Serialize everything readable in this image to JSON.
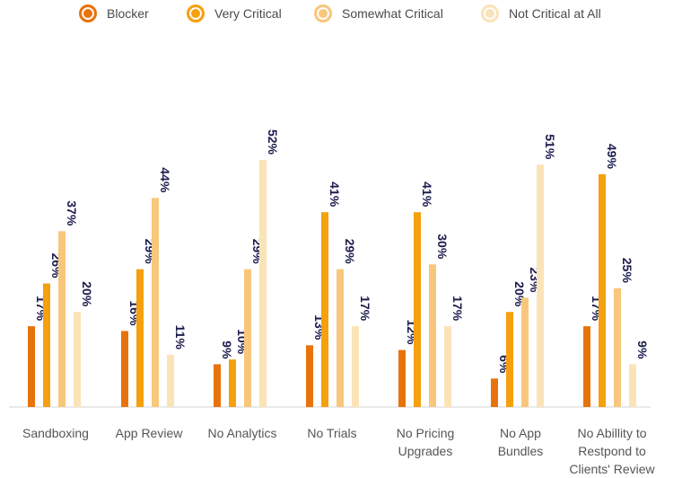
{
  "chart_data": {
    "type": "bar",
    "title": "",
    "xlabel": "",
    "ylabel": "",
    "ylim": [
      0,
      52
    ],
    "legend_position": "top",
    "categories": [
      [
        "Sandboxing"
      ],
      [
        "App Review"
      ],
      [
        "No Analytics"
      ],
      [
        "No Trials"
      ],
      [
        "No Pricing",
        "Upgrades"
      ],
      [
        "No App",
        "Bundles"
      ],
      [
        "No Abillity to",
        "Restpond to",
        "Clients' Review"
      ]
    ],
    "series": [
      {
        "name": "Blocker",
        "color": "#e8730c",
        "values": [
          17,
          16,
          9,
          13,
          12,
          6,
          17
        ]
      },
      {
        "name": "Very Critical",
        "color": "#f5a00d",
        "values": [
          26,
          29,
          10,
          41,
          41,
          20,
          49
        ]
      },
      {
        "name": "Somewhat Critical",
        "color": "#f8c77c",
        "values": [
          37,
          44,
          29,
          29,
          30,
          23,
          25
        ]
      },
      {
        "name": "Not Critical at All",
        "color": "#fbe3b8",
        "values": [
          20,
          11,
          52,
          17,
          17,
          51,
          9
        ]
      }
    ],
    "value_suffix": "%",
    "label_color": "#1c1c4e",
    "axis_color": "#d6d6d6",
    "category_label_color": "#555555"
  }
}
